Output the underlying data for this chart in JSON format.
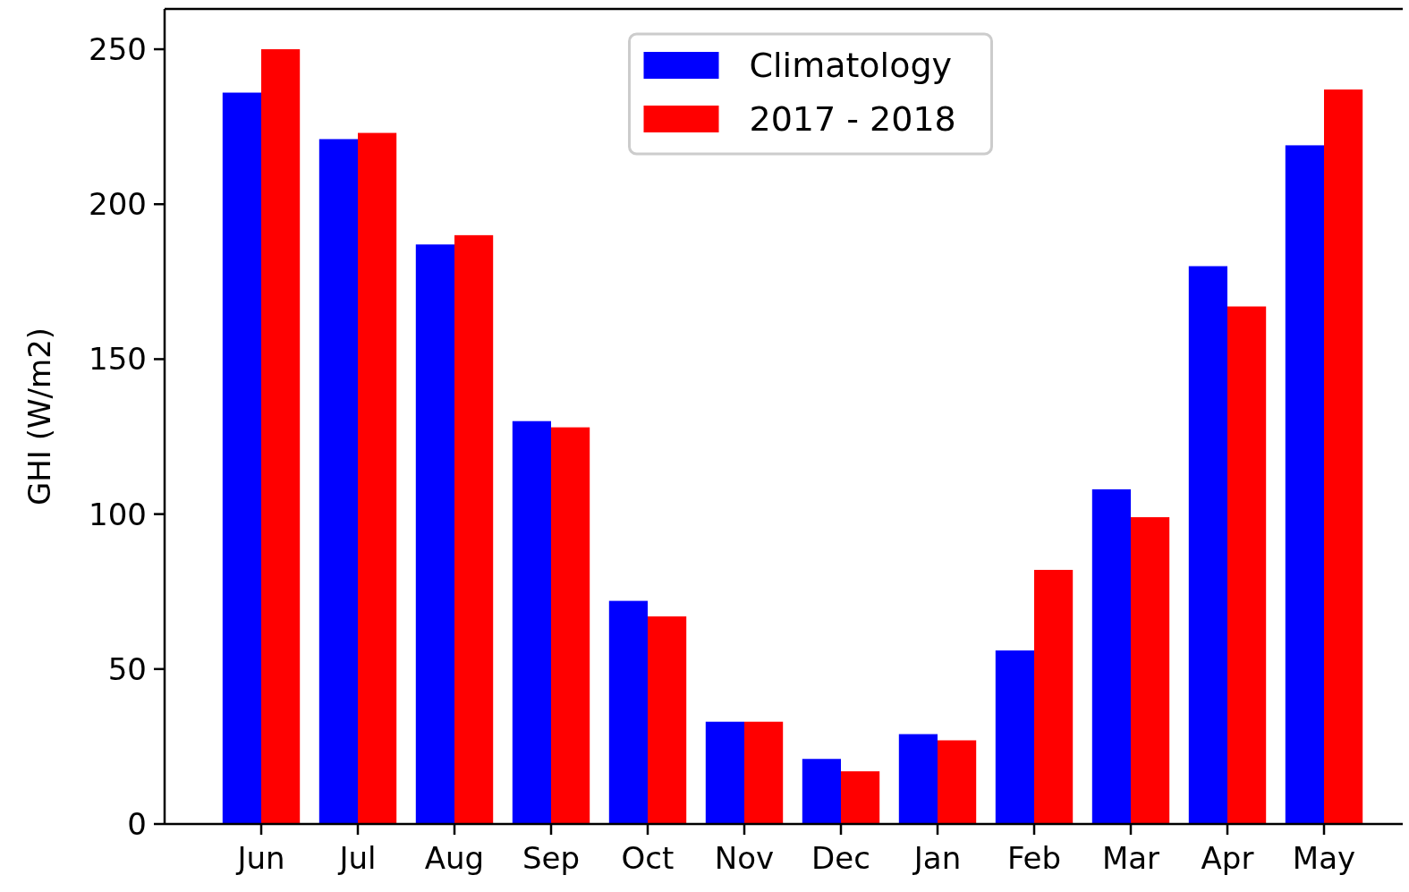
{
  "chart_data": {
    "type": "bar",
    "ylabel": "GHI (W/m2)",
    "categories": [
      "Jun",
      "Jul",
      "Aug",
      "Sep",
      "Oct",
      "Nov",
      "Dec",
      "Jan",
      "Feb",
      "Mar",
      "Apr",
      "May"
    ],
    "series": [
      {
        "name": "Climatology",
        "color": "#0000ff",
        "values": [
          236,
          221,
          187,
          130,
          72,
          33,
          21,
          29,
          56,
          108,
          180,
          219
        ]
      },
      {
        "name": "2017 - 2018",
        "color": "#ff0000",
        "values": [
          250,
          223,
          190,
          128,
          67,
          33,
          17,
          27,
          82,
          99,
          167,
          237
        ]
      }
    ],
    "ylim": [
      0,
      263
    ],
    "yticks": [
      0,
      50,
      100,
      150,
      200,
      250
    ],
    "grid": false,
    "legend": "top"
  }
}
